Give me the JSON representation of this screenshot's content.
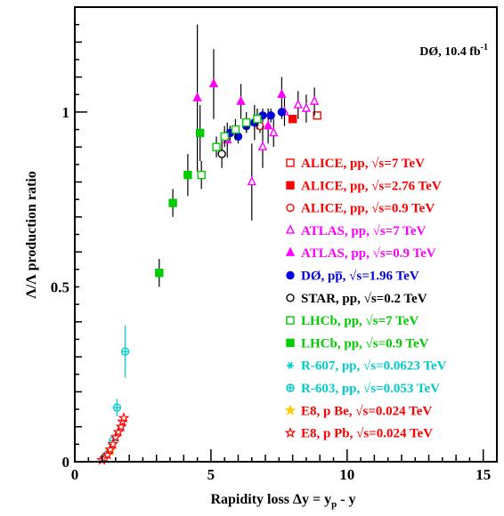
{
  "chart_data": {
    "type": "scatter",
    "xlabel": "Rapidity loss Δy = y",
    "xlabel_sub": "p",
    "xlabel_tail": " - y",
    "ylabel": "Λ/Λ production ratio",
    "xlim": [
      0,
      15.5
    ],
    "ylim": [
      0,
      1.3
    ],
    "x_ticks": [
      0,
      5,
      10,
      15
    ],
    "x_tick_labels": [
      "0",
      "5",
      "10",
      "15"
    ],
    "y_ticks": [
      0,
      0.5,
      1
    ],
    "y_tick_labels": [
      "0",
      "0.5",
      "1"
    ],
    "annotation": "DØ, 10.4 fb",
    "annotation_sup": "-1",
    "legend_placement": "right",
    "series": [
      {
        "name": "ALICE, pp, √s=7 TeV",
        "color": "#ff0000",
        "marker": "square-open",
        "points": [
          [
            8.9,
            0.99,
            0.01
          ]
        ]
      },
      {
        "name": "ALICE, pp, √s=2.76 TeV",
        "color": "#ff0000",
        "marker": "square-filled",
        "points": [
          [
            8.0,
            0.98,
            0.01
          ]
        ]
      },
      {
        "name": "ALICE, pp, √s=0.9 TeV",
        "color": "#ff0000",
        "marker": "circle-open",
        "points": [
          [
            6.8,
            0.96,
            0.02
          ]
        ]
      },
      {
        "name": "ATLAS, pp, √s=7 TeV",
        "color": "#ff00ff",
        "marker": "triangle-open",
        "points": [
          [
            6.5,
            0.8,
            0.11
          ],
          [
            6.9,
            0.9,
            0.06
          ],
          [
            7.3,
            0.94,
            0.04
          ],
          [
            7.7,
            1.0,
            0.04
          ],
          [
            8.2,
            1.02,
            0.04
          ],
          [
            8.5,
            1.01,
            0.04
          ],
          [
            8.8,
            1.03,
            0.04
          ]
        ]
      },
      {
        "name": "ATLAS, pp, √s=0.9 TeV",
        "color": "#ff00ff",
        "marker": "triangle-filled",
        "points": [
          [
            4.5,
            1.04,
            0.21
          ],
          [
            5.1,
            1.08,
            0.1
          ],
          [
            5.6,
            0.92,
            0.05
          ],
          [
            6.1,
            1.03,
            0.05
          ],
          [
            6.6,
            0.97,
            0.05
          ],
          [
            7.1,
            0.96,
            0.05
          ],
          [
            7.6,
            1.05,
            0.05
          ]
        ]
      },
      {
        "name": "DØ, p̅p̅, √s=1.96 TeV",
        "display_name": "DØ, pp̅, √s=1.96 TeV",
        "color": "#0000dd",
        "marker": "circle-filled",
        "points": [
          [
            5.7,
            0.94,
            0.02
          ],
          [
            6.0,
            0.93,
            0.02
          ],
          [
            6.3,
            0.96,
            0.02
          ],
          [
            6.6,
            0.97,
            0.02
          ],
          [
            6.9,
            0.99,
            0.02
          ],
          [
            7.2,
            0.99,
            0.02
          ],
          [
            7.6,
            1.0,
            0.02
          ]
        ]
      },
      {
        "name": "STAR, pp, √s=0.2 TeV",
        "color": "#000000",
        "marker": "circle-open",
        "points": [
          [
            5.4,
            0.88,
            0.04
          ]
        ]
      },
      {
        "name": "LHCb, pp, √s=7 TeV",
        "color": "#00cc00",
        "marker": "square-open",
        "points": [
          [
            4.65,
            0.82,
            0.04
          ],
          [
            5.2,
            0.9,
            0.03
          ],
          [
            5.5,
            0.93,
            0.03
          ],
          [
            5.9,
            0.95,
            0.03
          ],
          [
            6.3,
            0.97,
            0.03
          ],
          [
            6.7,
            0.98,
            0.03
          ]
        ]
      },
      {
        "name": "LHCb, pp, √s=0.9 TeV",
        "color": "#00cc00",
        "marker": "square-filled",
        "points": [
          [
            3.1,
            0.54,
            0.04
          ],
          [
            3.6,
            0.74,
            0.04
          ],
          [
            4.15,
            0.82,
            0.06
          ],
          [
            4.6,
            0.94,
            0.08
          ]
        ]
      },
      {
        "name": "R-607, pp, √s=0.0623 TeV",
        "color": "#00cccc",
        "marker": "asterisk",
        "points": [
          [
            1.05,
            0.01,
            0.005
          ],
          [
            1.15,
            0.02,
            0.005
          ],
          [
            1.25,
            0.03,
            0.005
          ],
          [
            1.35,
            0.05,
            0.01
          ],
          [
            1.45,
            0.06,
            0.01
          ]
        ]
      },
      {
        "name": "R-603, pp, √s=0.053 TeV",
        "color": "#00cccc",
        "marker": "cross-circle",
        "points": [
          [
            1.4,
            0.06,
            0.02
          ],
          [
            1.55,
            0.155,
            0.025
          ],
          [
            1.85,
            0.315,
            0.075
          ]
        ]
      },
      {
        "name": "E8, p Be, √s=0.024 TeV",
        "color": "#ffcc00",
        "marker": "star-filled",
        "points": [
          [
            1.3,
            0.03,
            0.005
          ]
        ]
      },
      {
        "name": "E8, p Pb, √s=0.024 TeV",
        "color": "#ff0000",
        "marker": "star-open",
        "points": [
          [
            1.0,
            0.005,
            0.003
          ],
          [
            1.1,
            0.01,
            0.003
          ],
          [
            1.2,
            0.02,
            0.004
          ],
          [
            1.3,
            0.035,
            0.004
          ],
          [
            1.4,
            0.05,
            0.005
          ],
          [
            1.5,
            0.07,
            0.006
          ],
          [
            1.6,
            0.085,
            0.006
          ],
          [
            1.7,
            0.1,
            0.008
          ],
          [
            1.75,
            0.115,
            0.008
          ],
          [
            1.8,
            0.125,
            0.01
          ]
        ]
      }
    ]
  }
}
